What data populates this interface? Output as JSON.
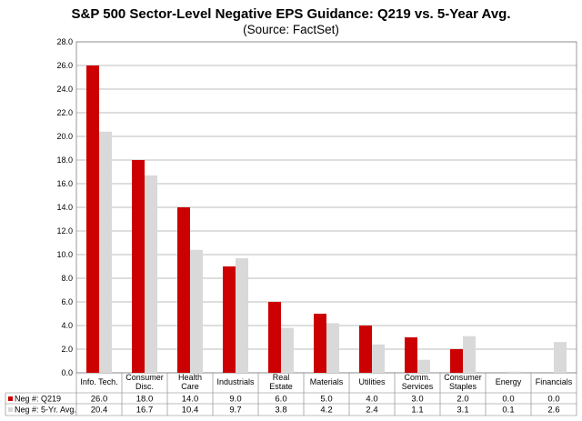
{
  "chart_data": {
    "type": "bar",
    "title": "S&P 500 Sector-Level Negative EPS Guidance: Q219 vs. 5-Year Avg.",
    "subtitle": "(Source: FactSet)",
    "xlabel": "",
    "ylabel": "",
    "ylim": [
      0,
      28
    ],
    "ytick_step": 2,
    "grid": true,
    "legend_placement": "data-table-left",
    "categories": [
      [
        "Info. Tech."
      ],
      [
        "Consumer",
        "Disc."
      ],
      [
        "Health",
        "Care"
      ],
      [
        "Industrials"
      ],
      [
        "Real",
        "Estate"
      ],
      [
        "Materials"
      ],
      [
        "Utilities"
      ],
      [
        "Comm.",
        "Services"
      ],
      [
        "Consumer",
        "Staples"
      ],
      [
        "Energy"
      ],
      [
        "Financials"
      ]
    ],
    "series": [
      {
        "name": "Neg #: Q219",
        "color": "#cc0000",
        "values": [
          26.0,
          18.0,
          14.0,
          9.0,
          6.0,
          5.0,
          4.0,
          3.0,
          2.0,
          0.0,
          0.0
        ]
      },
      {
        "name": "Neg #: 5-Yr. Avg.",
        "color": "#d9d9d9",
        "values": [
          20.4,
          16.7,
          10.4,
          9.7,
          3.8,
          4.2,
          2.4,
          1.1,
          3.1,
          0.1,
          2.6
        ]
      }
    ]
  }
}
